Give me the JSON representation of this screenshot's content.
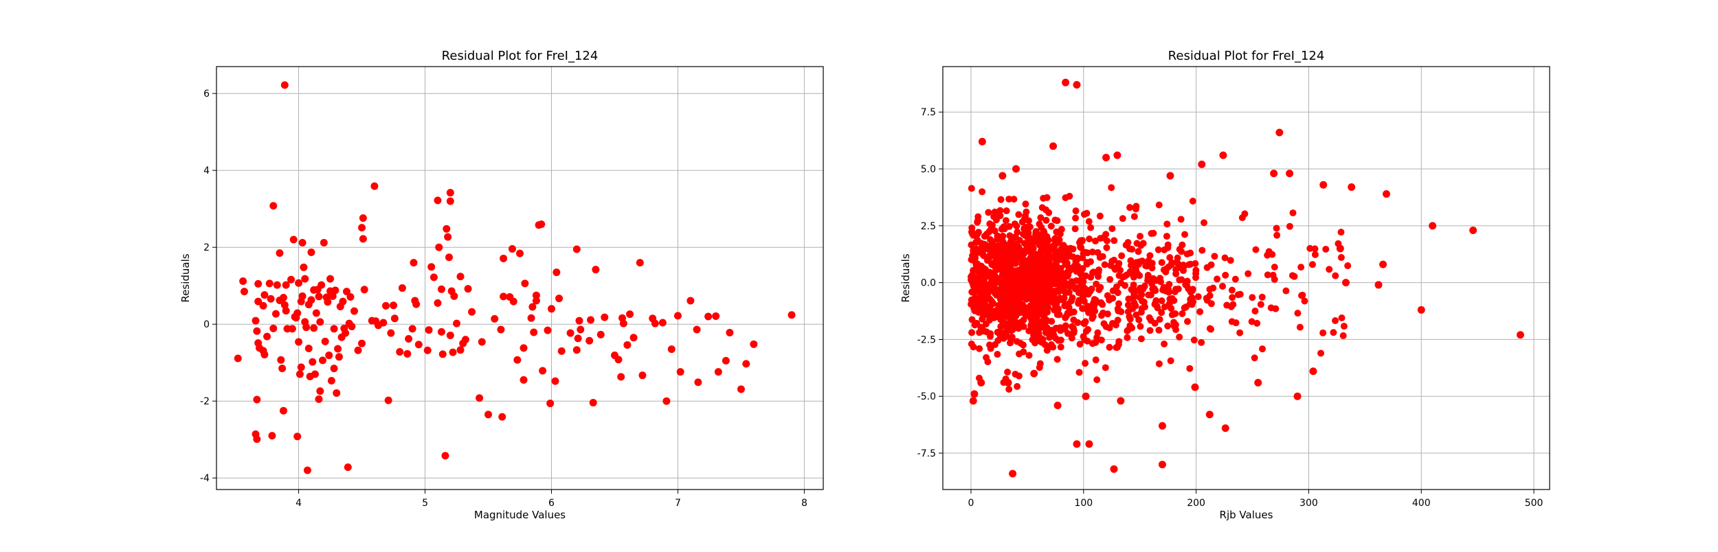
{
  "chart_data": [
    {
      "type": "scatter",
      "title": "Residual Plot for FreI_124",
      "xlabel": "Magnitude Values",
      "ylabel": "Residuals",
      "xlim": [
        3.35,
        8.15
      ],
      "ylim": [
        -4.3,
        6.7
      ],
      "xticks": [
        4,
        5,
        6,
        7,
        8
      ],
      "yticks": [
        -4,
        -2,
        0,
        2,
        4,
        6
      ],
      "grid": true,
      "marker_color": "#ff0000",
      "points_note": "approximate readings, full set of visually distinguishable points",
      "series": [
        {
          "points": [
            [
              3.52,
              -0.89
            ],
            [
              3.56,
              1.12
            ],
            [
              3.57,
              0.85
            ],
            [
              3.66,
              -2.86
            ],
            [
              3.66,
              0.09
            ],
            [
              3.67,
              -0.18
            ],
            [
              3.67,
              -2.99
            ],
            [
              3.67,
              -1.96
            ],
            [
              3.68,
              -0.49
            ],
            [
              3.68,
              1.05
            ],
            [
              3.68,
              0.59
            ],
            [
              3.69,
              -0.62
            ],
            [
              3.72,
              -0.69
            ],
            [
              3.72,
              0.48
            ],
            [
              3.73,
              -0.79
            ],
            [
              3.73,
              0.76
            ],
            [
              3.75,
              -0.32
            ],
            [
              3.77,
              1.06
            ],
            [
              3.78,
              0.66
            ],
            [
              3.79,
              -2.9
            ],
            [
              3.8,
              3.08
            ],
            [
              3.8,
              -0.11
            ],
            [
              3.82,
              0.27
            ],
            [
              3.83,
              1.02
            ],
            [
              3.85,
              0.62
            ],
            [
              3.85,
              1.85
            ],
            [
              3.86,
              -0.93
            ],
            [
              3.87,
              -1.15
            ],
            [
              3.88,
              -2.25
            ],
            [
              3.88,
              0.69
            ],
            [
              3.89,
              6.22
            ],
            [
              3.89,
              0.5
            ],
            [
              3.9,
              1.02
            ],
            [
              3.9,
              0.35
            ],
            [
              3.91,
              -0.12
            ],
            [
              3.94,
              1.16
            ],
            [
              3.95,
              -0.12
            ],
            [
              3.96,
              2.2
            ],
            [
              3.97,
              0.19
            ],
            [
              3.98,
              0.17
            ],
            [
              3.99,
              -2.92
            ],
            [
              3.99,
              0.29
            ],
            [
              4.0,
              -0.46
            ],
            [
              4.0,
              1.07
            ],
            [
              4.01,
              -1.3
            ],
            [
              4.02,
              0.59
            ],
            [
              4.02,
              -1.12
            ],
            [
              4.03,
              0.73
            ],
            [
              4.03,
              2.12
            ],
            [
              4.04,
              1.48
            ],
            [
              4.05,
              0.06
            ],
            [
              4.05,
              1.18
            ],
            [
              4.06,
              -0.08
            ],
            [
              4.07,
              -3.8
            ],
            [
              4.08,
              -0.63
            ],
            [
              4.08,
              0.51
            ],
            [
              4.09,
              -1.36
            ],
            [
              4.1,
              1.87
            ],
            [
              4.1,
              0.63
            ],
            [
              4.11,
              -0.98
            ],
            [
              4.12,
              0.89
            ],
            [
              4.12,
              -0.1
            ],
            [
              4.13,
              -1.3
            ],
            [
              4.14,
              0.29
            ],
            [
              4.15,
              0.9
            ],
            [
              4.16,
              -1.95
            ],
            [
              4.16,
              0.72
            ],
            [
              4.17,
              0.06
            ],
            [
              4.17,
              -1.74
            ],
            [
              4.18,
              1.02
            ],
            [
              4.19,
              -0.94
            ],
            [
              4.2,
              2.12
            ],
            [
              4.21,
              -0.45
            ],
            [
              4.22,
              0.7
            ],
            [
              4.23,
              0.58
            ],
            [
              4.24,
              -0.81
            ],
            [
              4.25,
              0.86
            ],
            [
              4.25,
              1.18
            ],
            [
              4.26,
              -1.47
            ],
            [
              4.27,
              0.73
            ],
            [
              4.28,
              -1.15
            ],
            [
              4.28,
              -0.12
            ],
            [
              4.29,
              0.88
            ],
            [
              4.3,
              -1.79
            ],
            [
              4.31,
              -0.64
            ],
            [
              4.32,
              -0.85
            ],
            [
              4.33,
              0.46
            ],
            [
              4.34,
              -0.34
            ],
            [
              4.35,
              0.59
            ],
            [
              4.36,
              -0.11
            ],
            [
              4.37,
              -0.23
            ],
            [
              4.38,
              0.85
            ],
            [
              4.39,
              -3.72
            ],
            [
              4.4,
              0.02
            ],
            [
              4.41,
              0.71
            ],
            [
              4.42,
              -0.06
            ],
            [
              4.44,
              0.34
            ],
            [
              4.47,
              -0.68
            ],
            [
              4.5,
              -0.5
            ],
            [
              4.5,
              2.51
            ],
            [
              4.51,
              2.22
            ],
            [
              4.51,
              2.76
            ],
            [
              4.52,
              0.9
            ],
            [
              4.58,
              0.09
            ],
            [
              4.6,
              3.59
            ],
            [
              4.61,
              0.08
            ],
            [
              4.63,
              -0.03
            ],
            [
              4.67,
              0.04
            ],
            [
              4.69,
              0.48
            ],
            [
              4.71,
              -1.98
            ],
            [
              4.73,
              -0.23
            ],
            [
              4.75,
              0.49
            ],
            [
              4.76,
              0.15
            ],
            [
              4.8,
              -0.72
            ],
            [
              4.82,
              0.94
            ],
            [
              4.86,
              -0.77
            ],
            [
              4.87,
              -0.38
            ],
            [
              4.9,
              -0.12
            ],
            [
              4.91,
              1.6
            ],
            [
              4.92,
              0.61
            ],
            [
              4.93,
              0.52
            ],
            [
              4.95,
              -0.53
            ],
            [
              5.02,
              -0.68
            ],
            [
              5.03,
              -0.15
            ],
            [
              5.05,
              1.49
            ],
            [
              5.07,
              1.22
            ],
            [
              5.1,
              0.55
            ],
            [
              5.1,
              3.22
            ],
            [
              5.11,
              2.0
            ],
            [
              5.13,
              -0.2
            ],
            [
              5.13,
              0.91
            ],
            [
              5.14,
              -0.78
            ],
            [
              5.16,
              -3.42
            ],
            [
              5.17,
              2.48
            ],
            [
              5.18,
              2.27
            ],
            [
              5.19,
              1.74
            ],
            [
              5.2,
              -0.29
            ],
            [
              5.2,
              3.42
            ],
            [
              5.2,
              3.2
            ],
            [
              5.21,
              0.86
            ],
            [
              5.22,
              -0.73
            ],
            [
              5.23,
              0.73
            ],
            [
              5.25,
              0.02
            ],
            [
              5.28,
              -0.67
            ],
            [
              5.28,
              1.24
            ],
            [
              5.3,
              -0.5
            ],
            [
              5.32,
              -0.4
            ],
            [
              5.34,
              0.92
            ],
            [
              5.37,
              0.32
            ],
            [
              5.43,
              -1.92
            ],
            [
              5.45,
              -0.46
            ],
            [
              5.5,
              -2.35
            ],
            [
              5.55,
              0.14
            ],
            [
              5.6,
              -0.14
            ],
            [
              5.61,
              -2.41
            ],
            [
              5.62,
              0.72
            ],
            [
              5.62,
              1.71
            ],
            [
              5.67,
              0.71
            ],
            [
              5.69,
              1.96
            ],
            [
              5.7,
              0.59
            ],
            [
              5.73,
              -0.93
            ],
            [
              5.75,
              1.84
            ],
            [
              5.78,
              -0.62
            ],
            [
              5.78,
              -1.45
            ],
            [
              5.79,
              1.06
            ],
            [
              5.84,
              0.16
            ],
            [
              5.85,
              0.45
            ],
            [
              5.86,
              -0.21
            ],
            [
              5.88,
              0.75
            ],
            [
              5.88,
              0.61
            ],
            [
              5.9,
              2.58
            ],
            [
              5.92,
              2.6
            ],
            [
              5.93,
              -1.21
            ],
            [
              5.97,
              -0.16
            ],
            [
              5.99,
              -2.06
            ],
            [
              6.0,
              0.4
            ],
            [
              6.03,
              -1.48
            ],
            [
              6.04,
              1.35
            ],
            [
              6.06,
              0.67
            ],
            [
              6.08,
              -0.7
            ],
            [
              6.15,
              -0.23
            ],
            [
              6.2,
              -0.67
            ],
            [
              6.2,
              1.95
            ],
            [
              6.21,
              -0.37
            ],
            [
              6.22,
              0.09
            ],
            [
              6.23,
              -0.14
            ],
            [
              6.3,
              -0.43
            ],
            [
              6.31,
              0.11
            ],
            [
              6.33,
              -2.04
            ],
            [
              6.35,
              1.42
            ],
            [
              6.39,
              -0.27
            ],
            [
              6.42,
              0.18
            ],
            [
              6.5,
              -0.81
            ],
            [
              6.53,
              -0.92
            ],
            [
              6.55,
              -1.37
            ],
            [
              6.56,
              0.16
            ],
            [
              6.57,
              0.02
            ],
            [
              6.6,
              -0.54
            ],
            [
              6.62,
              0.26
            ],
            [
              6.65,
              -0.35
            ],
            [
              6.7,
              1.6
            ],
            [
              6.72,
              -1.33
            ],
            [
              6.8,
              0.15
            ],
            [
              6.82,
              0.02
            ],
            [
              6.88,
              0.04
            ],
            [
              6.91,
              -2.0
            ],
            [
              6.95,
              -0.65
            ],
            [
              7.0,
              0.22
            ],
            [
              7.02,
              -1.24
            ],
            [
              7.1,
              0.61
            ],
            [
              7.15,
              -0.14
            ],
            [
              7.16,
              -1.51
            ],
            [
              7.24,
              0.2
            ],
            [
              7.3,
              0.21
            ],
            [
              7.32,
              -1.24
            ],
            [
              7.38,
              -0.95
            ],
            [
              7.41,
              -0.22
            ],
            [
              7.5,
              -1.69
            ],
            [
              7.54,
              -1.03
            ],
            [
              7.6,
              -0.52
            ],
            [
              7.9,
              0.24
            ]
          ]
        }
      ]
    },
    {
      "type": "scatter",
      "title": "Residual Plot for FreI_124",
      "xlabel": "Rjb Values",
      "ylabel": "Residuals",
      "xlim": [
        -25,
        514
      ],
      "ylim": [
        -9.1,
        9.5
      ],
      "xticks": [
        0,
        100,
        200,
        300,
        400,
        500
      ],
      "yticks": [
        -7.5,
        -5.0,
        -2.5,
        0.0,
        2.5,
        5.0,
        7.5
      ],
      "grid": true,
      "marker_color": "#ff0000",
      "points_note": "approximate readings; dense cluster near origin represented by a generated sample",
      "dense_cluster": {
        "count": 1500,
        "x_range": [
          0,
          340
        ],
        "x_peak": 45,
        "y_center": 0.0,
        "y_spread": 1.5
      },
      "series": [
        {
          "points": [
            [
              84,
              8.8
            ],
            [
              94,
              8.7
            ],
            [
              10,
              6.2
            ],
            [
              73,
              6.0
            ],
            [
              274,
              6.6
            ],
            [
              130,
              5.6
            ],
            [
              120,
              5.5
            ],
            [
              40,
              5.0
            ],
            [
              205,
              5.2
            ],
            [
              224,
              5.6
            ],
            [
              28,
              4.7
            ],
            [
              177,
              4.7
            ],
            [
              269,
              4.8
            ],
            [
              283,
              4.8
            ],
            [
              313,
              4.3
            ],
            [
              338,
              4.2
            ],
            [
              369,
              3.9
            ],
            [
              410,
              2.5
            ],
            [
              446,
              2.3
            ],
            [
              488,
              -2.3
            ],
            [
              400,
              -1.2
            ],
            [
              362,
              -0.1
            ],
            [
              366,
              0.8
            ],
            [
              328,
              1.5
            ],
            [
              333,
              0.0
            ],
            [
              3,
              -4.9
            ],
            [
              2,
              -5.2
            ],
            [
              9,
              -4.4
            ],
            [
              33,
              -4.4
            ],
            [
              56,
              -4.0
            ],
            [
              77,
              -5.4
            ],
            [
              94,
              -7.1
            ],
            [
              105,
              -7.1
            ],
            [
              37,
              -8.4
            ],
            [
              127,
              -8.2
            ],
            [
              170,
              -8.0
            ],
            [
              170,
              -6.3
            ],
            [
              212,
              -5.8
            ],
            [
              226,
              -6.4
            ],
            [
              199,
              -4.6
            ],
            [
              255,
              -4.4
            ],
            [
              290,
              -5.0
            ],
            [
              304,
              -3.9
            ],
            [
              133,
              -5.2
            ],
            [
              102,
              -5.0
            ]
          ]
        }
      ]
    }
  ]
}
